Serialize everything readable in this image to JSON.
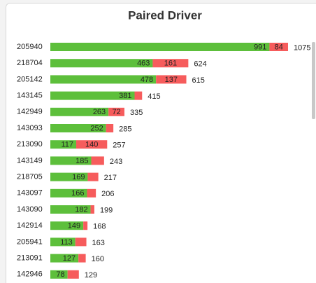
{
  "chart_data": {
    "type": "bar",
    "orientation": "horizontal",
    "stacked": true,
    "title": "Paired Driver",
    "categories": [
      "205940",
      "218704",
      "205142",
      "143145",
      "142949",
      "143093",
      "213090",
      "143149",
      "218705",
      "143097",
      "143090",
      "142914",
      "205941",
      "213091",
      "142946"
    ],
    "series": [
      {
        "color": "#5dbf3b",
        "values": [
          991,
          463,
          478,
          381,
          263,
          252,
          117,
          185,
          169,
          166,
          182,
          149,
          113,
          127,
          78
        ]
      },
      {
        "color": "#f65c5c",
        "values": [
          84,
          161,
          137,
          34,
          72,
          33,
          140,
          58,
          48,
          40,
          17,
          19,
          50,
          33,
          51
        ]
      }
    ],
    "totals": [
      1075,
      624,
      615,
      415,
      335,
      285,
      257,
      243,
      217,
      206,
      199,
      168,
      163,
      160,
      129
    ]
  }
}
